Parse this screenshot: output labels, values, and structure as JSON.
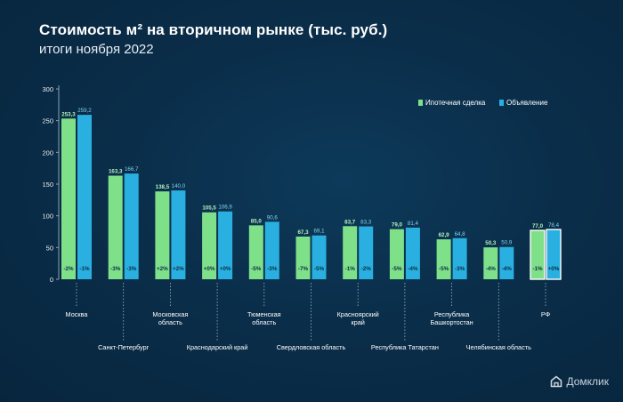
{
  "header": {
    "title": "Стоимость м² на вторичном рынке (тыс. руб.)",
    "subtitle": "итоги ноября 2022"
  },
  "brand": {
    "name": "Домклик",
    "icon": "domclick-house-icon"
  },
  "colors": {
    "mortgage": "#7fe08a",
    "listing": "#29b0e0",
    "axis_text": "#ffffff",
    "grid": "#3b5a74"
  },
  "chart_data": {
    "type": "bar",
    "title": "Стоимость м² на вторичном рынке (тыс. руб.)",
    "subtitle": "итоги ноября 2022",
    "ylim": [
      0,
      300
    ],
    "yticks": [
      0,
      50,
      100,
      150,
      200,
      250,
      300
    ],
    "grid": false,
    "legend_position": "top-right",
    "categories": [
      "Москва",
      "Санкт-Петербург",
      "Московская область",
      "Краснодарский край",
      "Тюменская область",
      "Свердловская область",
      "Красноярский край",
      "Республика Татарстан",
      "Республика Башкортостан",
      "Челябинская область",
      "РФ"
    ],
    "series": [
      {
        "name": "Ипотечная сделка",
        "values": [
          253.3,
          163.3,
          138.5,
          105.5,
          85.0,
          67.3,
          83.7,
          79.0,
          62.9,
          50.3,
          77.0
        ],
        "value_labels": [
          "253,3",
          "163,3",
          "138,5",
          "105,5",
          "85,0",
          "67,3",
          "83,7",
          "79,0",
          "62,9",
          "50,3",
          "77,0"
        ],
        "changes": [
          "-2%",
          "-3%",
          "+2%",
          "+0%",
          "-5%",
          "-7%",
          "-1%",
          "-5%",
          "-5%",
          "-4%",
          "-1%"
        ]
      },
      {
        "name": "Объявление",
        "values": [
          259.2,
          166.7,
          140.0,
          106.9,
          90.6,
          69.1,
          83.3,
          81.4,
          64.8,
          50.9,
          78.4
        ],
        "value_labels": [
          "259,2",
          "166,7",
          "140,0",
          "106,9",
          "90,6",
          "69,1",
          "83,3",
          "81,4",
          "64,8",
          "50,9",
          "78,4"
        ],
        "changes": [
          "-1%",
          "-3%",
          "+2%",
          "+0%",
          "-3%",
          "-5%",
          "-2%",
          "-4%",
          "-3%",
          "-4%",
          "+0%"
        ]
      }
    ],
    "category_label_lines": [
      [
        "Москва"
      ],
      [
        "Санкт-Петербург"
      ],
      [
        "Московская",
        "область"
      ],
      [
        "Краснодарский край"
      ],
      [
        "Тюменская",
        "область"
      ],
      [
        "Свердловская область"
      ],
      [
        "Красноярский",
        "край"
      ],
      [
        "Республика Татарстан"
      ],
      [
        "Республика",
        "Башкортостан"
      ],
      [
        "Челябинская область"
      ],
      [
        "РФ"
      ]
    ]
  }
}
